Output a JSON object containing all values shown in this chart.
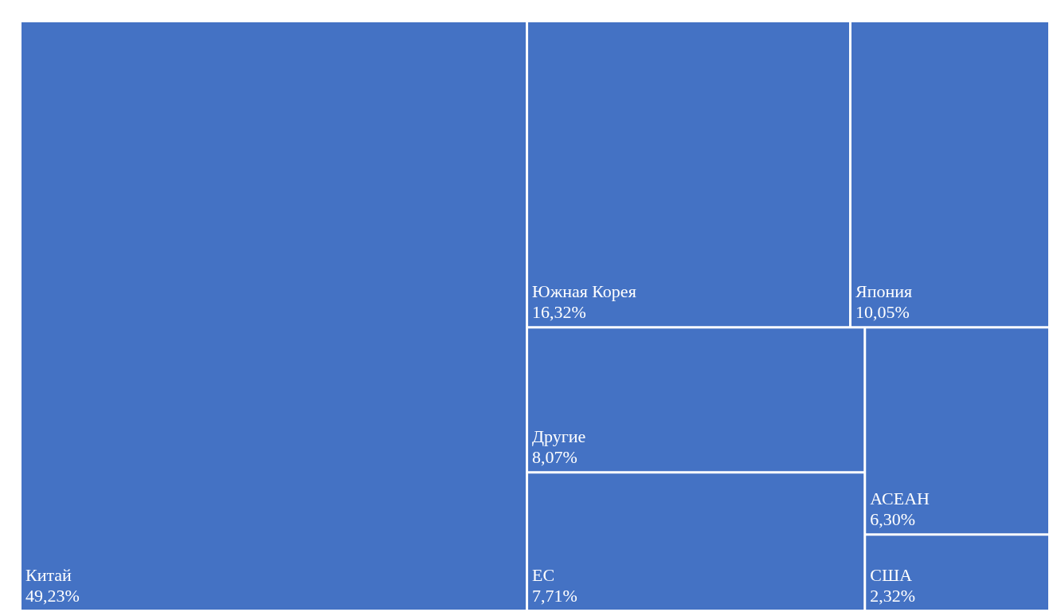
{
  "chart_data": {
    "type": "other",
    "categories": [
      "Китай",
      "Южная Корея",
      "Япония",
      "Другие",
      "ЕС",
      "АСЕАН",
      "США"
    ],
    "values": [
      49.23,
      16.32,
      10.05,
      8.07,
      7.71,
      6.3,
      2.32
    ],
    "value_labels": [
      "49,23%",
      "16,32%",
      "10,05%",
      "8,07%",
      "7,71%",
      "6,30%",
      "2,32%"
    ],
    "color": "#4472c4"
  }
}
